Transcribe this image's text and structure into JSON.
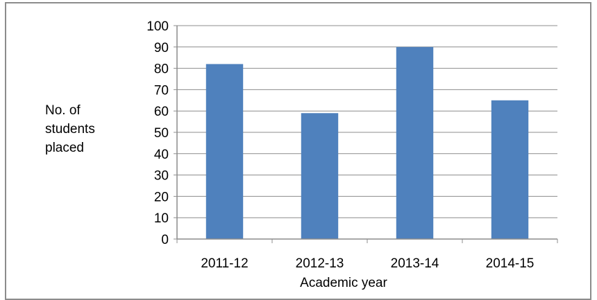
{
  "chart_data": {
    "type": "bar",
    "categories": [
      "2011-12",
      "2012-13",
      "2013-14",
      "2014-15"
    ],
    "values": [
      82,
      59,
      90,
      65
    ],
    "ylabel_lines": [
      "No. of",
      "students",
      "placed"
    ],
    "xlabel": "Academic year",
    "ylim": [
      0,
      100
    ],
    "yticks": [
      0,
      10,
      20,
      30,
      40,
      50,
      60,
      70,
      80,
      90,
      100
    ],
    "grid": true,
    "bar_color": "#4f81bd",
    "grid_color": "#8c8c8c"
  }
}
